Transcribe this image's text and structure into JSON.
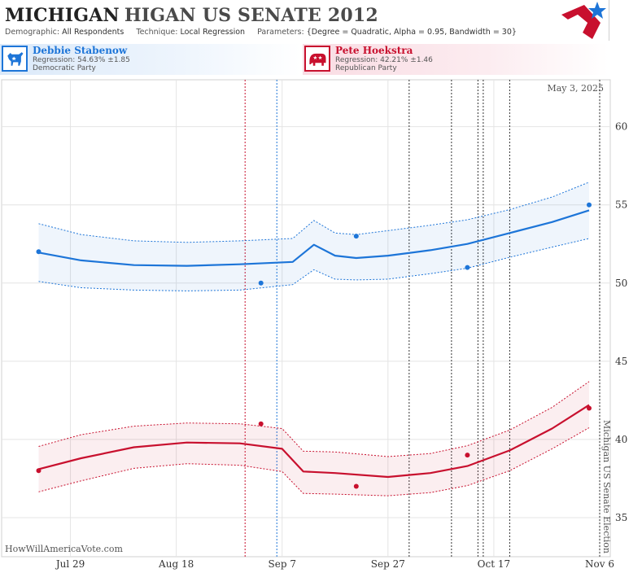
{
  "header": {
    "title_state": "MICHIGAN",
    "title_race": "HIGAN US SENATE 2012",
    "demographic_label": "Demographic:",
    "demographic_value": "All Respondents",
    "technique_label": "Technique:",
    "technique_value": "Local Regression",
    "parameters_label": "Parameters:",
    "parameters_value": "{Degree = Quadratic, Alpha = 0.95, Bandwidth = 30}"
  },
  "candidates": {
    "dem": {
      "name": "Debbie Stabenow",
      "regression": "Regression: 54.63% ±1.85",
      "party": "Democratic Party",
      "color": "#1d75d8"
    },
    "rep": {
      "name": "Pete Hoekstra",
      "regression": "Regression: 42.21% ±1.46",
      "party": "Republican Party",
      "color": "#c8102e"
    }
  },
  "chart_data": {
    "type": "line",
    "date_label": "May 3, 2025",
    "watermark": "HowWillAmericaVote.com",
    "election_label": "Michigan US Senate Election",
    "x_ticks": [
      "Jul 29",
      "Aug 18",
      "Sep 7",
      "Sep 27",
      "Oct 17",
      "Nov 6"
    ],
    "x_tick_dates": [
      "2012-07-29",
      "2012-08-18",
      "2012-09-07",
      "2012-09-27",
      "2012-10-17",
      "2012-11-06"
    ],
    "y_ticks": [
      35,
      40,
      45,
      50,
      55,
      60
    ],
    "ylim": [
      32.5,
      63
    ],
    "xlim": [
      "2012-07-16",
      "2012-11-08"
    ],
    "event_lines": [
      {
        "date": "2012-08-31",
        "color": "#c8102e"
      },
      {
        "date": "2012-09-06",
        "color": "#1d75d8"
      },
      {
        "date": "2012-10-01",
        "color": "#333333"
      },
      {
        "date": "2012-10-09",
        "color": "#333333"
      },
      {
        "date": "2012-10-14",
        "color": "#333333"
      },
      {
        "date": "2012-10-15",
        "color": "#333333"
      },
      {
        "date": "2012-10-20",
        "color": "#333333"
      },
      {
        "date": "2012-11-06",
        "color": "#333333"
      }
    ],
    "series": [
      {
        "name": "Debbie Stabenow",
        "color": "#1d75d8",
        "polls": [
          {
            "x": "2012-07-23",
            "y": 52
          },
          {
            "x": "2012-09-03",
            "y": 50
          },
          {
            "x": "2012-09-21",
            "y": 53
          },
          {
            "x": "2012-10-12",
            "y": 51
          },
          {
            "x": "2012-11-04",
            "y": 55
          }
        ],
        "trend": [
          {
            "x": "2012-07-23",
            "y": 51.95,
            "lo": 50.1,
            "hi": 53.8
          },
          {
            "x": "2012-07-31",
            "y": 51.45,
            "lo": 49.7,
            "hi": 53.1
          },
          {
            "x": "2012-08-10",
            "y": 51.15,
            "lo": 49.55,
            "hi": 52.7
          },
          {
            "x": "2012-08-20",
            "y": 51.1,
            "lo": 49.5,
            "hi": 52.6
          },
          {
            "x": "2012-08-30",
            "y": 51.2,
            "lo": 49.55,
            "hi": 52.7
          },
          {
            "x": "2012-09-09",
            "y": 51.35,
            "lo": 49.9,
            "hi": 52.85
          },
          {
            "x": "2012-09-13",
            "y": 52.45,
            "lo": 50.85,
            "hi": 54.0
          },
          {
            "x": "2012-09-17",
            "y": 51.75,
            "lo": 50.25,
            "hi": 53.2
          },
          {
            "x": "2012-09-21",
            "y": 51.6,
            "lo": 50.2,
            "hi": 53.1
          },
          {
            "x": "2012-09-27",
            "y": 51.75,
            "lo": 50.25,
            "hi": 53.35
          },
          {
            "x": "2012-10-05",
            "y": 52.1,
            "lo": 50.6,
            "hi": 53.7
          },
          {
            "x": "2012-10-12",
            "y": 52.5,
            "lo": 50.95,
            "hi": 54.05
          },
          {
            "x": "2012-10-20",
            "y": 53.2,
            "lo": 51.65,
            "hi": 54.7
          },
          {
            "x": "2012-10-28",
            "y": 53.9,
            "lo": 52.3,
            "hi": 55.5
          },
          {
            "x": "2012-11-04",
            "y": 54.65,
            "lo": 52.85,
            "hi": 56.45
          }
        ]
      },
      {
        "name": "Pete Hoekstra",
        "color": "#c8102e",
        "polls": [
          {
            "x": "2012-07-23",
            "y": 38
          },
          {
            "x": "2012-09-03",
            "y": 41
          },
          {
            "x": "2012-09-21",
            "y": 37
          },
          {
            "x": "2012-10-12",
            "y": 39
          },
          {
            "x": "2012-11-04",
            "y": 42
          }
        ],
        "trend": [
          {
            "x": "2012-07-23",
            "y": 38.1,
            "lo": 36.65,
            "hi": 39.55
          },
          {
            "x": "2012-07-31",
            "y": 38.8,
            "lo": 37.35,
            "hi": 40.3
          },
          {
            "x": "2012-08-10",
            "y": 39.5,
            "lo": 38.15,
            "hi": 40.85
          },
          {
            "x": "2012-08-20",
            "y": 39.8,
            "lo": 38.45,
            "hi": 41.05
          },
          {
            "x": "2012-08-30",
            "y": 39.75,
            "lo": 38.35,
            "hi": 41.0
          },
          {
            "x": "2012-09-07",
            "y": 39.4,
            "lo": 37.95,
            "hi": 40.7
          },
          {
            "x": "2012-09-11",
            "y": 37.95,
            "lo": 36.55,
            "hi": 39.25
          },
          {
            "x": "2012-09-17",
            "y": 37.85,
            "lo": 36.5,
            "hi": 39.2
          },
          {
            "x": "2012-09-27",
            "y": 37.6,
            "lo": 36.4,
            "hi": 38.9
          },
          {
            "x": "2012-10-05",
            "y": 37.85,
            "lo": 36.6,
            "hi": 39.1
          },
          {
            "x": "2012-10-12",
            "y": 38.3,
            "lo": 37.05,
            "hi": 39.6
          },
          {
            "x": "2012-10-20",
            "y": 39.3,
            "lo": 38.0,
            "hi": 40.6
          },
          {
            "x": "2012-10-28",
            "y": 40.7,
            "lo": 39.4,
            "hi": 42.05
          },
          {
            "x": "2012-11-04",
            "y": 42.2,
            "lo": 40.75,
            "hi": 43.7
          }
        ]
      }
    ]
  }
}
